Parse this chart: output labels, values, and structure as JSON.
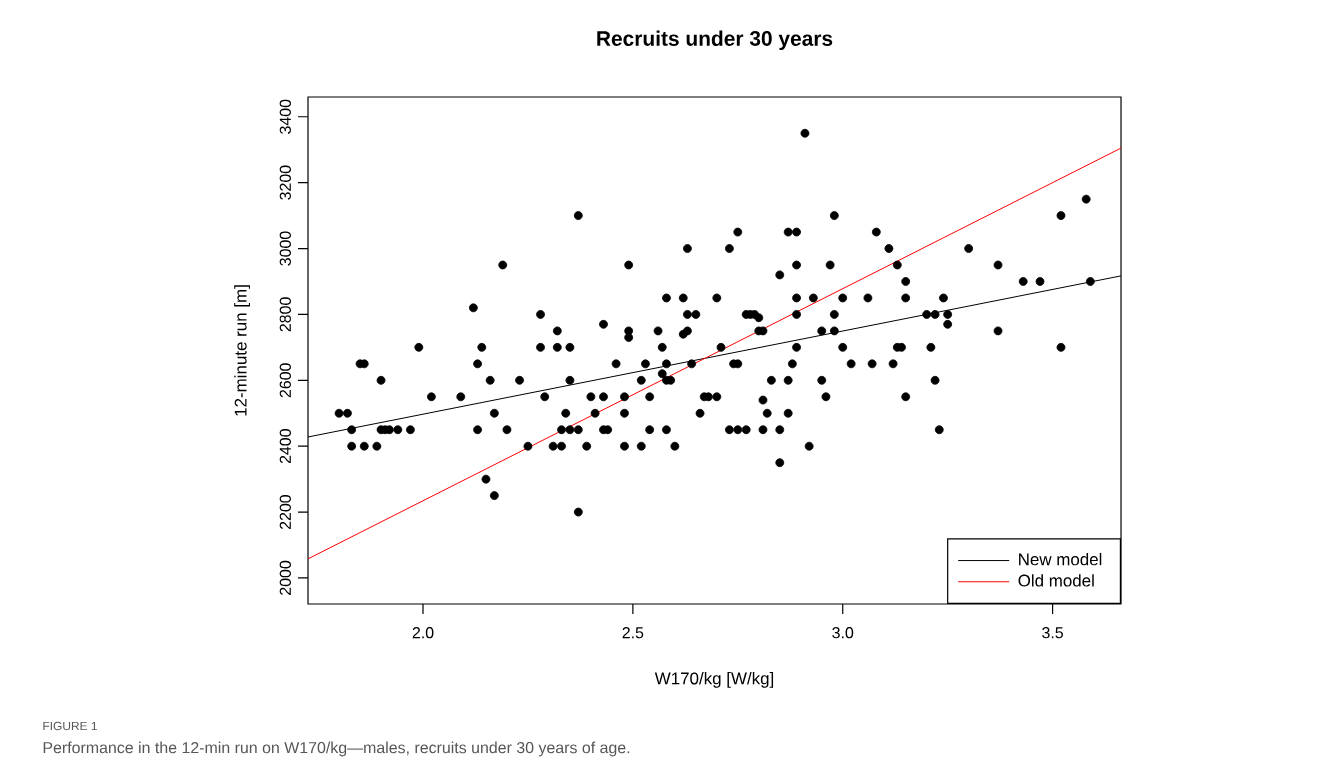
{
  "chart_data": {
    "type": "scatter",
    "title": "Recruits under 30 years",
    "xlabel": "W170/kg [W/kg]",
    "ylabel": "12-minute run [m]",
    "annotations": [
      "FIGURE 1",
      "Performance in the 12-min run on W170/kg—males, recruits under 30 years of age."
    ],
    "xlim": [
      1.726,
      3.663
    ],
    "ylim": [
      1921,
      3460
    ],
    "xticks": [
      {
        "value": 2,
        "label": "2.0"
      },
      {
        "value": 2.5,
        "label": "2.5"
      },
      {
        "value": 3,
        "label": "3.0"
      },
      {
        "value": 3.5,
        "label": "3.5"
      }
    ],
    "yticks": [
      2000,
      2200,
      2400,
      2600,
      2800,
      3000,
      3200,
      3400
    ],
    "grid": false,
    "legend": "bottom right",
    "marker": "circle",
    "series": [
      {
        "color": "#000000",
        "x": [
          1.8,
          1.82,
          1.83,
          1.83,
          1.85,
          1.86,
          1.86,
          1.89,
          1.9,
          1.9,
          1.91,
          1.92,
          1.94,
          1.97,
          1.99,
          2.02,
          2.09,
          2.12,
          2.13,
          2.13,
          2.14,
          2.15,
          2.16,
          2.17,
          2.17,
          2.19,
          2.2,
          2.23,
          2.25,
          2.28,
          2.28,
          2.29,
          2.31,
          2.32,
          2.32,
          2.33,
          2.33,
          2.34,
          2.35,
          2.35,
          2.35,
          2.37,
          2.37,
          2.37,
          2.39,
          2.4,
          2.41,
          2.43,
          2.43,
          2.43,
          2.44,
          2.46,
          2.48,
          2.48,
          2.48,
          2.49,
          2.49,
          2.49,
          2.52,
          2.52,
          2.53,
          2.54,
          2.54,
          2.56,
          2.57,
          2.57,
          2.58,
          2.58,
          2.58,
          2.58,
          2.59,
          2.6,
          2.62,
          2.62,
          2.63,
          2.63,
          2.63,
          2.64,
          2.65,
          2.66,
          2.67,
          2.68,
          2.7,
          2.7,
          2.71,
          2.73,
          2.73,
          2.74,
          2.75,
          2.75,
          2.75,
          2.77,
          2.77,
          2.78,
          2.79,
          2.8,
          2.8,
          2.81,
          2.81,
          2.81,
          2.82,
          2.83,
          2.85,
          2.85,
          2.85,
          2.87,
          2.87,
          2.87,
          2.88,
          2.89,
          2.89,
          2.89,
          2.89,
          2.89,
          2.91,
          2.92,
          2.93,
          2.95,
          2.95,
          2.96,
          2.97,
          2.98,
          2.98,
          2.98,
          3.0,
          3.0,
          3.02,
          3.06,
          3.07,
          3.08,
          3.11,
          3.12,
          3.13,
          3.13,
          3.14,
          3.15,
          3.15,
          3.15,
          3.2,
          3.21,
          3.22,
          3.22,
          3.23,
          3.24,
          3.25,
          3.25,
          3.3,
          3.37,
          3.37,
          3.43,
          3.47,
          3.52,
          3.52,
          3.58,
          3.59
        ],
        "values": [
          2500,
          2500,
          2450,
          2400,
          2650,
          2650,
          2400,
          2400,
          2600,
          2450,
          2450,
          2450,
          2450,
          2450,
          2700,
          2550,
          2550,
          2820,
          2650,
          2450,
          2700,
          2300,
          2600,
          2250,
          2500,
          2950,
          2450,
          2600,
          2400,
          2800,
          2700,
          2550,
          2400,
          2700,
          2750,
          2400,
          2450,
          2500,
          2600,
          2700,
          2450,
          3100,
          2450,
          2200,
          2400,
          2550,
          2500,
          2770,
          2550,
          2450,
          2450,
          2650,
          2550,
          2500,
          2400,
          2950,
          2750,
          2730,
          2600,
          2400,
          2650,
          2550,
          2450,
          2750,
          2700,
          2620,
          2850,
          2650,
          2600,
          2450,
          2600,
          2400,
          2740,
          2850,
          2800,
          2750,
          3000,
          2650,
          2800,
          2500,
          2550,
          2550,
          2850,
          2550,
          2700,
          3000,
          2450,
          2650,
          2650,
          3050,
          2450,
          2800,
          2450,
          2800,
          2800,
          2790,
          2750,
          2750,
          2540,
          2450,
          2500,
          2600,
          2920,
          2450,
          2350,
          2600,
          2500,
          3050,
          2650,
          3050,
          2950,
          2850,
          2800,
          2700,
          3350,
          2400,
          2850,
          2750,
          2600,
          2550,
          2950,
          3100,
          2800,
          2750,
          2850,
          2700,
          2650,
          2850,
          2650,
          3050,
          3000,
          2650,
          2950,
          2700,
          2700,
          2900,
          2850,
          2550,
          2800,
          2700,
          2800,
          2600,
          2450,
          2850,
          2800,
          2770,
          3000,
          2950,
          2750,
          2900,
          2900,
          3100,
          2700,
          3150,
          2900
        ]
      },
      {
        "name": "New model",
        "type": "line",
        "marker": "none",
        "color": "#000000",
        "x": [
          1.726,
          3.663
        ],
        "values": [
          2428,
          2917
        ]
      },
      {
        "name": "Old model",
        "type": "line",
        "marker": "none",
        "color": "#ff0000",
        "x": [
          1.726,
          3.663
        ],
        "values": [
          2058,
          3305
        ]
      }
    ]
  }
}
